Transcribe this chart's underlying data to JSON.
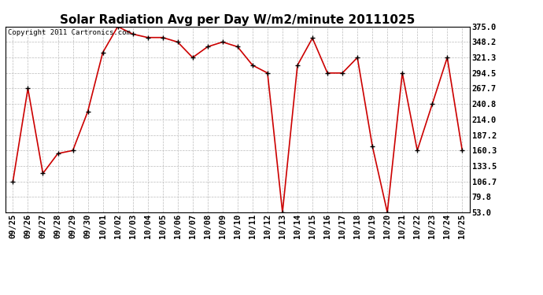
{
  "title": "Solar Radiation Avg per Day W/m2/minute 20111025",
  "copyright_text": "Copyright 2011 Cartronics.com",
  "x_labels": [
    "09/25",
    "09/26",
    "09/27",
    "09/28",
    "09/29",
    "09/30",
    "10/01",
    "10/02",
    "10/03",
    "10/04",
    "10/05",
    "10/06",
    "10/07",
    "10/08",
    "10/09",
    "10/10",
    "10/11",
    "10/12",
    "10/13",
    "10/14",
    "10/15",
    "10/16",
    "10/17",
    "10/18",
    "10/19",
    "10/20",
    "10/21",
    "10/22",
    "10/23",
    "10/24",
    "10/25"
  ],
  "y_values": [
    106.7,
    267.7,
    120.5,
    155.0,
    160.3,
    228.0,
    330.0,
    375.0,
    362.0,
    356.0,
    356.0,
    348.2,
    321.3,
    340.0,
    348.2,
    340.0,
    308.0,
    294.5,
    53.0,
    308.0,
    355.0,
    294.5,
    294.5,
    321.3,
    168.0,
    53.0,
    294.5,
    160.3,
    240.8,
    321.3,
    160.3
  ],
  "y_min": 53.0,
  "y_max": 375.0,
  "y_ticks": [
    53.0,
    79.8,
    106.7,
    133.5,
    160.3,
    187.2,
    214.0,
    240.8,
    267.7,
    294.5,
    321.3,
    348.2,
    375.0
  ],
  "line_color": "#cc0000",
  "marker_color": "#000000",
  "background_color": "#ffffff",
  "grid_color": "#bbbbbb",
  "title_fontsize": 11,
  "copyright_fontsize": 6.5,
  "tick_fontsize": 7.5
}
